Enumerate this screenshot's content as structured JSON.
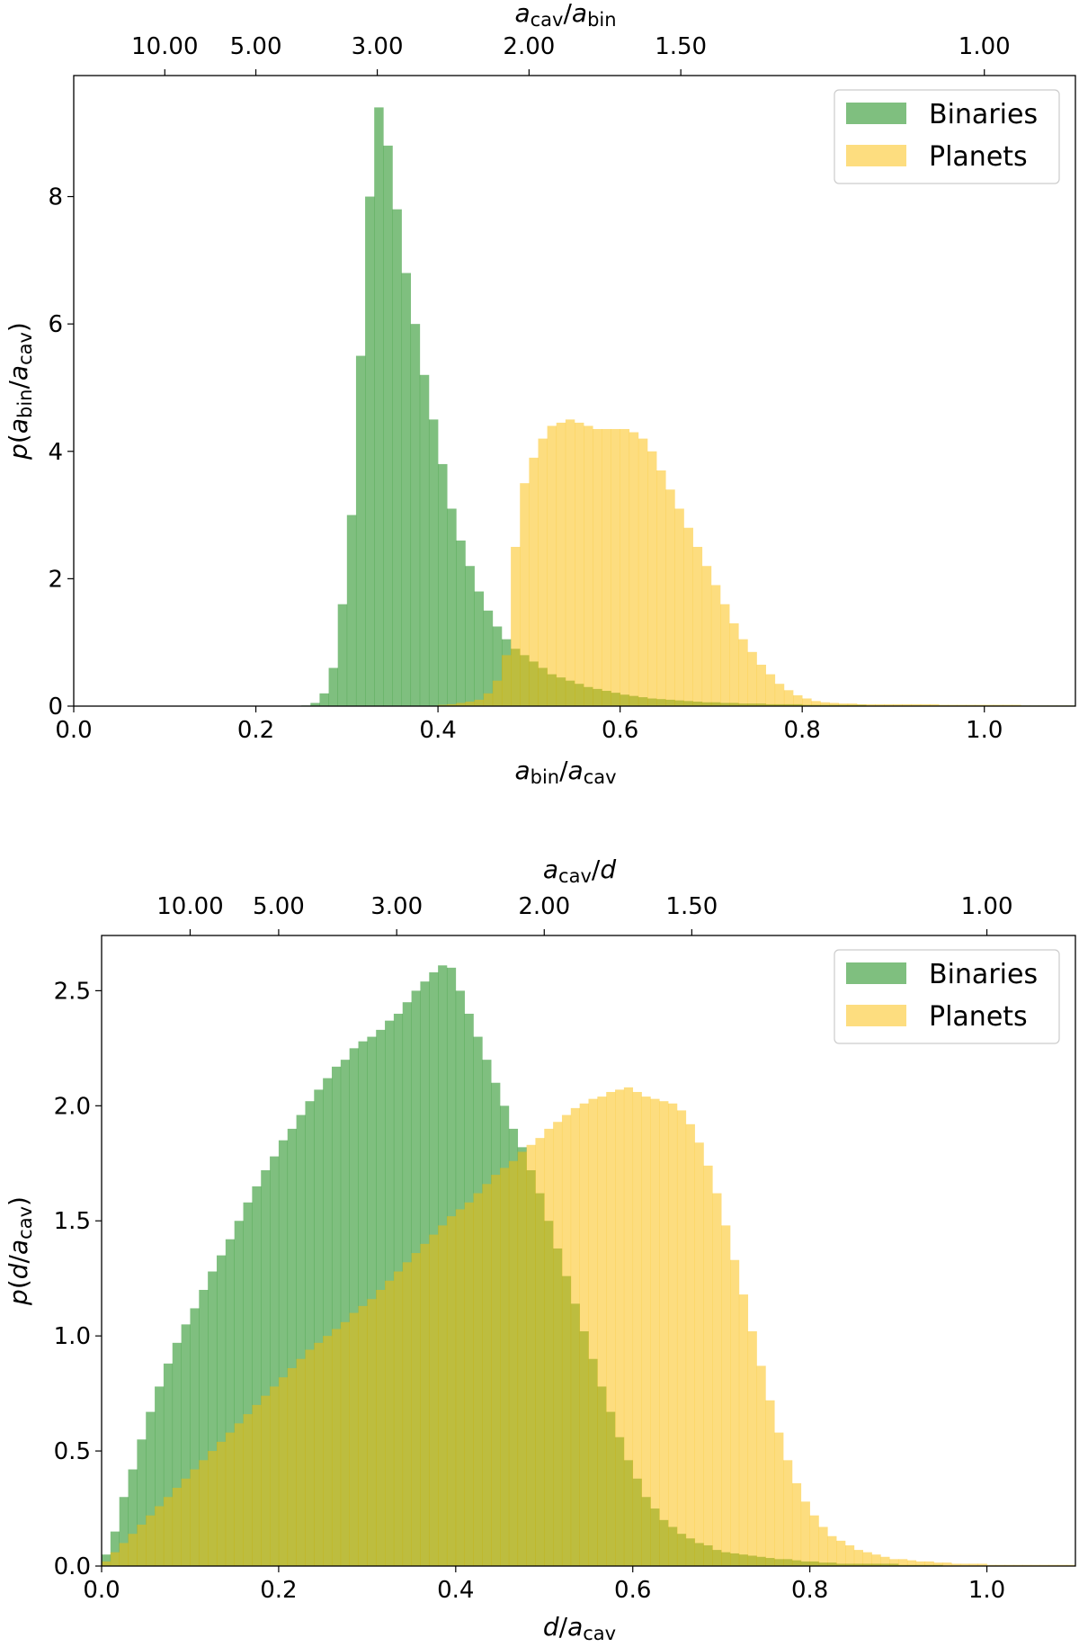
{
  "chart_data": [
    {
      "type": "histogram",
      "xlabel": "a_{bin}/a_{cav}",
      "ylabel": "p(a_{bin}/a_{cav})",
      "top_xlabel": "a_{cav}/a_{bin}",
      "xlim": [
        0,
        1.1
      ],
      "ylim": [
        0,
        9.9
      ],
      "xticks": [
        0.0,
        0.2,
        0.4,
        0.6,
        0.8,
        1.0
      ],
      "xtick_labels": [
        "0.0",
        "0.2",
        "0.4",
        "0.6",
        "0.8",
        "1.0"
      ],
      "yticks": [
        0,
        2,
        4,
        6,
        8
      ],
      "ytick_labels": [
        "0",
        "2",
        "4",
        "6",
        "8"
      ],
      "top_ticks": [
        10,
        5,
        3,
        2,
        1.5,
        1
      ],
      "top_tick_labels": [
        "10.00",
        "5.00",
        "3.00",
        "2.00",
        "1.50",
        "1.00"
      ],
      "legend": "top-right",
      "bin_width": 0.01,
      "series": [
        {
          "name": "Binaries",
          "color": "rgba(0,128,0,0.5)",
          "start": 0.25,
          "values": [
            0.01,
            0.05,
            0.2,
            0.6,
            1.6,
            3.0,
            5.5,
            8.0,
            9.4,
            8.8,
            7.8,
            6.8,
            6.0,
            5.2,
            4.5,
            3.8,
            3.1,
            2.6,
            2.2,
            1.8,
            1.5,
            1.25,
            1.05,
            0.9,
            0.8,
            0.7,
            0.6,
            0.5,
            0.45,
            0.4,
            0.35,
            0.3,
            0.27,
            0.24,
            0.21,
            0.18,
            0.16,
            0.14,
            0.12,
            0.11,
            0.1,
            0.09,
            0.08,
            0.07,
            0.06,
            0.06,
            0.05,
            0.05,
            0.04,
            0.04,
            0.04,
            0.03,
            0.03,
            0.03,
            0.03,
            0.02,
            0.02,
            0.02,
            0.02,
            0.02,
            0.02,
            0.02,
            0.01,
            0.01,
            0.01,
            0.01,
            0.01,
            0.01,
            0.01,
            0.01,
            0.01,
            0.01,
            0.01,
            0.01,
            0.01,
            0.01,
            0.01,
            0.01,
            0.01,
            0.01,
            0.01,
            0.01,
            0.01,
            0.01,
            0.01
          ]
        },
        {
          "name": "Planets",
          "color": "rgba(252,188,0,0.5)",
          "start": 0.4,
          "values": [
            0.02,
            0.03,
            0.05,
            0.07,
            0.1,
            0.2,
            0.4,
            0.8,
            2.5,
            3.5,
            3.9,
            4.2,
            4.4,
            4.45,
            4.5,
            4.45,
            4.4,
            4.35,
            4.35,
            4.35,
            4.35,
            4.3,
            4.2,
            4.0,
            3.7,
            3.4,
            3.1,
            2.8,
            2.5,
            2.2,
            1.9,
            1.6,
            1.3,
            1.05,
            0.85,
            0.65,
            0.5,
            0.35,
            0.25,
            0.17,
            0.12,
            0.08,
            0.06,
            0.05,
            0.04,
            0.04,
            0.03,
            0.03,
            0.03,
            0.03,
            0.03,
            0.03,
            0.03,
            0.03,
            0.03,
            0.02,
            0.02,
            0.02,
            0.02,
            0.02,
            0.02,
            0.02,
            0.02,
            0.02,
            0.01,
            0.01,
            0.01,
            0.01,
            0.01,
            0.01
          ]
        }
      ]
    },
    {
      "type": "histogram",
      "xlabel": "d/a_{cav}",
      "ylabel": "p(d/a_{cav})",
      "top_xlabel": "a_{cav}/d",
      "xlim": [
        0,
        1.1
      ],
      "ylim": [
        0,
        2.74
      ],
      "xticks": [
        0.0,
        0.2,
        0.4,
        0.6,
        0.8,
        1.0
      ],
      "xtick_labels": [
        "0.0",
        "0.2",
        "0.4",
        "0.6",
        "0.8",
        "1.0"
      ],
      "yticks": [
        0,
        0.5,
        1.0,
        1.5,
        2.0,
        2.5
      ],
      "ytick_labels": [
        "0.0",
        "0.5",
        "1.0",
        "1.5",
        "2.0",
        "2.5"
      ],
      "top_ticks": [
        10,
        5,
        3,
        2,
        1.5,
        1
      ],
      "top_tick_labels": [
        "10.00",
        "5.00",
        "3.00",
        "2.00",
        "1.50",
        "1.00"
      ],
      "legend": "top-right",
      "bin_width": 0.01,
      "series": [
        {
          "name": "Binaries",
          "color": "rgba(0,128,0,0.5)",
          "start": 0.0,
          "values": [
            0.05,
            0.15,
            0.3,
            0.42,
            0.55,
            0.67,
            0.78,
            0.88,
            0.97,
            1.05,
            1.12,
            1.2,
            1.28,
            1.35,
            1.42,
            1.5,
            1.58,
            1.65,
            1.72,
            1.78,
            1.85,
            1.9,
            1.96,
            2.02,
            2.07,
            2.12,
            2.17,
            2.2,
            2.25,
            2.28,
            2.3,
            2.33,
            2.37,
            2.4,
            2.45,
            2.5,
            2.54,
            2.58,
            2.61,
            2.6,
            2.5,
            2.4,
            2.3,
            2.2,
            2.1,
            2.0,
            1.9,
            1.82,
            1.72,
            1.62,
            1.5,
            1.38,
            1.26,
            1.14,
            1.02,
            0.9,
            0.78,
            0.67,
            0.56,
            0.46,
            0.38,
            0.3,
            0.25,
            0.2,
            0.17,
            0.14,
            0.12,
            0.1,
            0.09,
            0.07,
            0.06,
            0.055,
            0.05,
            0.045,
            0.04,
            0.035,
            0.03,
            0.03,
            0.025,
            0.02,
            0.02,
            0.015,
            0.015,
            0.01,
            0.01,
            0.01,
            0.01,
            0.01,
            0.01,
            0.01,
            0.005,
            0.005,
            0.005,
            0.005,
            0.005
          ]
        },
        {
          "name": "Planets",
          "color": "rgba(252,188,0,0.5)",
          "start": 0.0,
          "values": [
            0.02,
            0.06,
            0.1,
            0.14,
            0.18,
            0.22,
            0.26,
            0.3,
            0.34,
            0.38,
            0.42,
            0.46,
            0.5,
            0.54,
            0.58,
            0.62,
            0.66,
            0.7,
            0.74,
            0.78,
            0.82,
            0.86,
            0.9,
            0.94,
            0.97,
            1.0,
            1.03,
            1.06,
            1.1,
            1.13,
            1.16,
            1.2,
            1.24,
            1.28,
            1.32,
            1.36,
            1.4,
            1.44,
            1.48,
            1.52,
            1.55,
            1.58,
            1.62,
            1.66,
            1.7,
            1.73,
            1.76,
            1.8,
            1.83,
            1.86,
            1.9,
            1.93,
            1.96,
            1.99,
            2.01,
            2.03,
            2.04,
            2.06,
            2.07,
            2.08,
            2.06,
            2.04,
            2.03,
            2.02,
            2.01,
            1.98,
            1.92,
            1.84,
            1.74,
            1.62,
            1.48,
            1.33,
            1.18,
            1.02,
            0.87,
            0.72,
            0.58,
            0.46,
            0.36,
            0.28,
            0.22,
            0.17,
            0.13,
            0.11,
            0.09,
            0.07,
            0.06,
            0.05,
            0.04,
            0.03,
            0.03,
            0.025,
            0.02,
            0.02,
            0.015,
            0.015,
            0.01,
            0.01,
            0.01,
            0.01,
            0.005,
            0.005,
            0.005,
            0.005,
            0.005,
            0.005,
            0.005,
            0.005,
            0.005,
            0.005
          ]
        }
      ]
    }
  ]
}
